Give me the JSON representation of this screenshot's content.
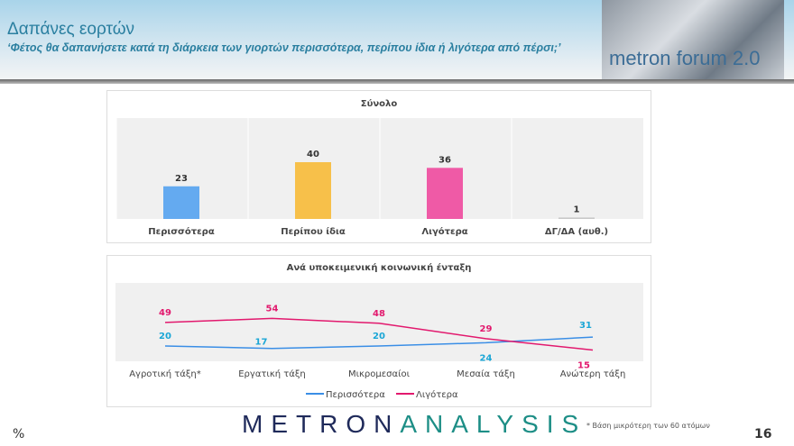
{
  "header": {
    "title": "Δαπάνες εορτών",
    "subtitle": "‘Φέτος θα δαπανήσετε κατά τη διάρκεια των γιορτών περισσότερα, περίπου ίδια ή λιγότερα από πέρσι;’",
    "forum_logo": "metron forum 2.0"
  },
  "chart_data": [
    {
      "type": "bar",
      "title": "Σύνολο",
      "categories": [
        "Περισσότερα",
        "Περίπου ίδια",
        "Λιγότερα",
        "ΔΓ/ΔΑ (αυθ.)"
      ],
      "values": [
        23,
        40,
        36,
        1
      ],
      "colors": [
        "#64aaf0",
        "#f7c04a",
        "#ef5aa6",
        "#c8c8c8"
      ],
      "ylim": [
        0,
        70
      ],
      "grid": false
    },
    {
      "type": "line",
      "title": "Ανά υποκειμενική κοινωνική ένταξη",
      "categories": [
        "Αγροτική τάξη*",
        "Εργατική τάξη",
        "Μικρομεσαίοι",
        "Μεσαία τάξη",
        "Ανώτερη τάξη"
      ],
      "series": [
        {
          "name": "Περισσότερα",
          "values": [
            20,
            17,
            20,
            24,
            31
          ],
          "color": "#3a8ee6",
          "label_color": "#1aa6d6"
        },
        {
          "name": "Λιγότερα",
          "values": [
            49,
            54,
            48,
            29,
            15
          ],
          "color": "#e2196e",
          "label_color": "#e2196e"
        }
      ],
      "ylim": [
        0,
        95
      ],
      "legend": "bottom"
    }
  ],
  "footer": {
    "unit": "%",
    "logo_left": "METRON",
    "logo_right": "ANALYSIS",
    "note": "* Βάση μικρότερη των 60 ατόμων",
    "page": "16"
  }
}
